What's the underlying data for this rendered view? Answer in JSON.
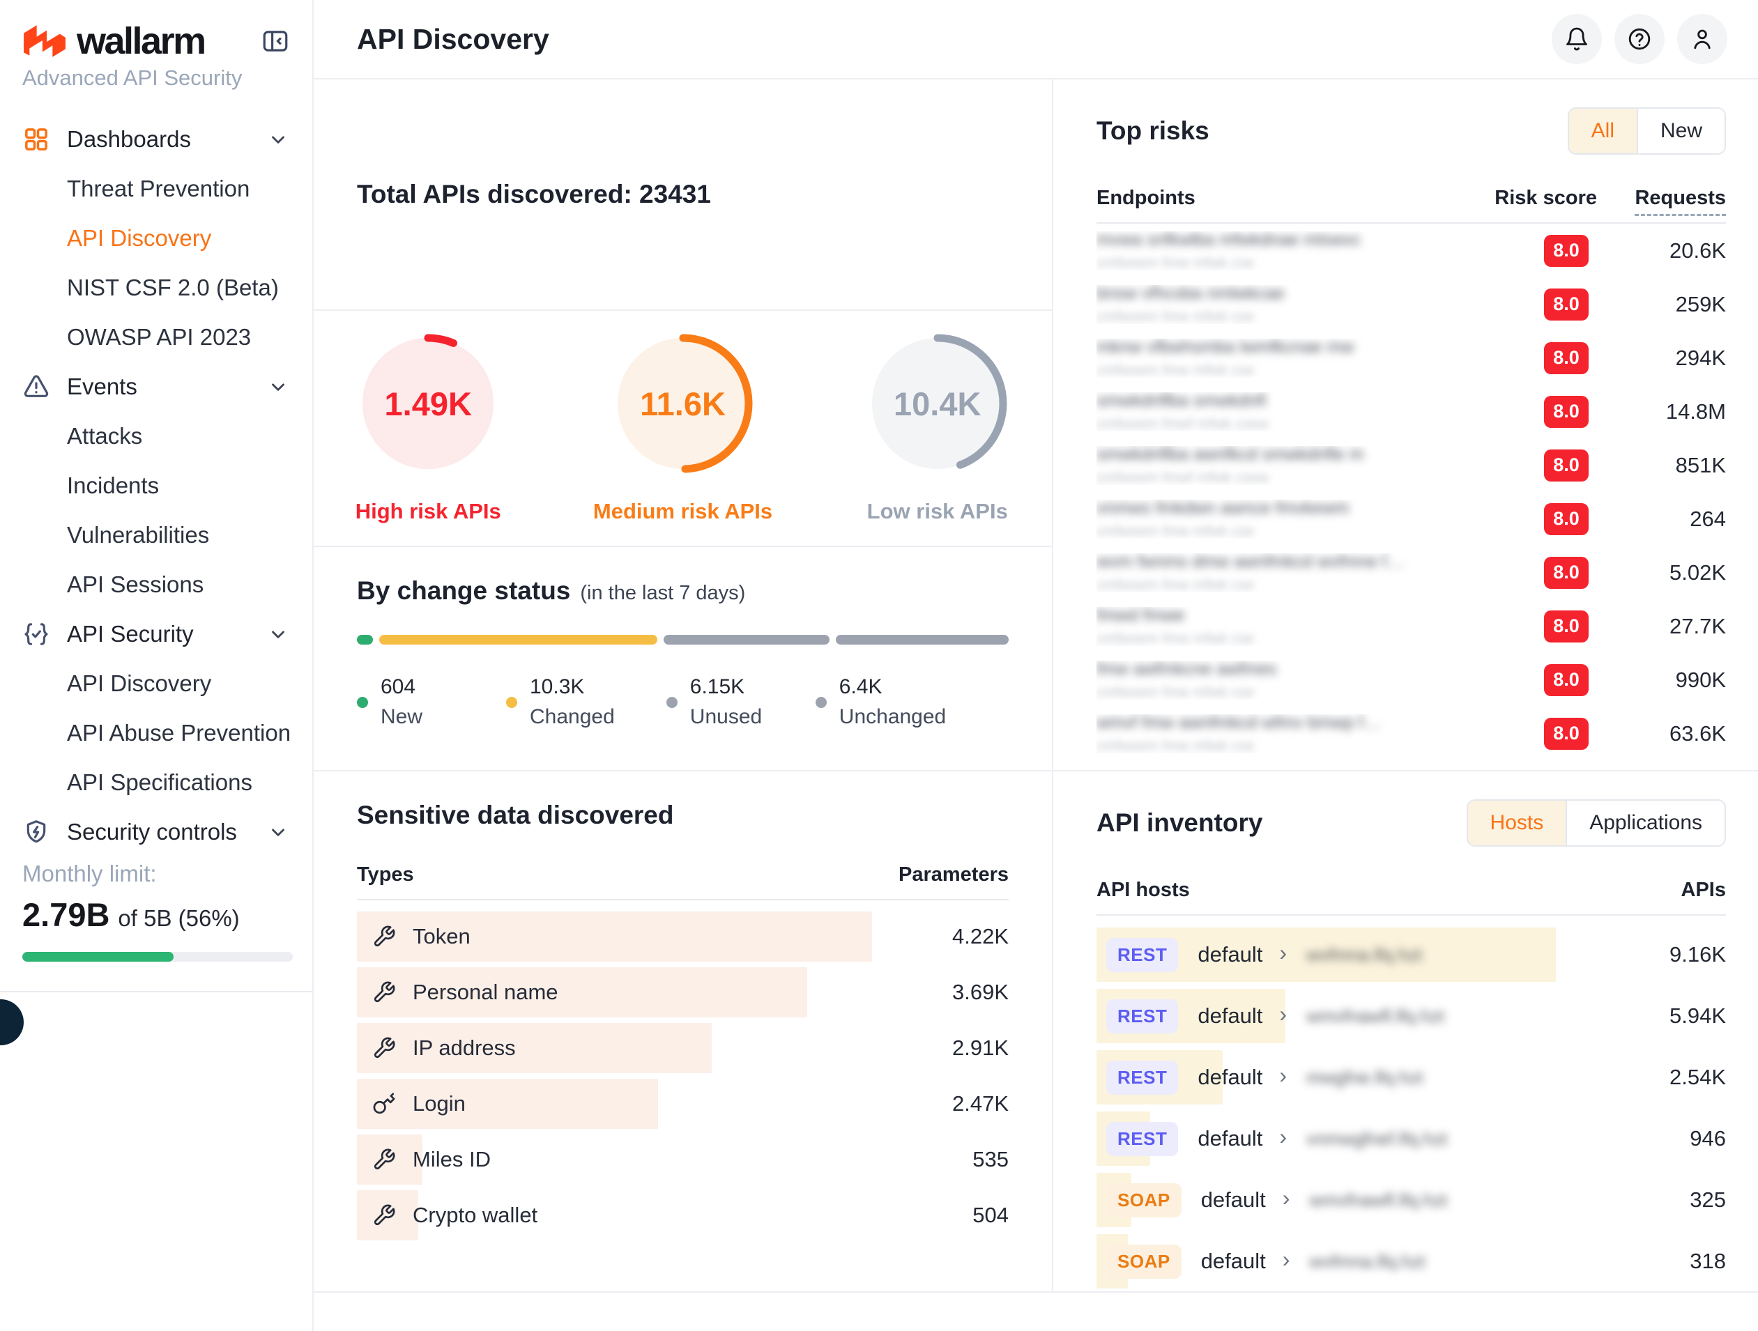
{
  "sidebar": {
    "brand": {
      "name": "wallarm",
      "tagline": "Advanced API Security"
    },
    "nav": [
      {
        "label": "Dashboards",
        "type": "section",
        "icon": "grid-icon"
      },
      {
        "label": "Threat Prevention",
        "type": "sub"
      },
      {
        "label": "API Discovery",
        "type": "sub",
        "active": true
      },
      {
        "label": "NIST CSF 2.0 (Beta)",
        "type": "sub"
      },
      {
        "label": "OWASP API 2023",
        "type": "sub"
      },
      {
        "label": "Events",
        "type": "section",
        "icon": "warning-icon"
      },
      {
        "label": "Attacks",
        "type": "sub"
      },
      {
        "label": "Incidents",
        "type": "sub"
      },
      {
        "label": "Vulnerabilities",
        "type": "sub"
      },
      {
        "label": "API Sessions",
        "type": "sub"
      },
      {
        "label": "API Security",
        "type": "section",
        "icon": "braces-check-icon"
      },
      {
        "label": "API Discovery",
        "type": "sub"
      },
      {
        "label": "API Abuse Prevention",
        "type": "sub"
      },
      {
        "label": "API Specifications",
        "type": "sub"
      },
      {
        "label": "Security controls",
        "type": "section",
        "icon": "shield-lightning-icon"
      }
    ],
    "monthly_limit": {
      "label": "Monthly limit:",
      "used": "2.79B",
      "suffix": "of 5B (56%)",
      "percent": 56,
      "bar_color": "#2cb573"
    }
  },
  "header": {
    "title": "API Discovery"
  },
  "totals": {
    "title": "Total APIs discovered: 23431",
    "total": 23431
  },
  "risk_circles": [
    {
      "value": "1.49K",
      "count": 1490,
      "label": "High risk APIs",
      "color": "#f5232e",
      "fill": "#fdeaea"
    },
    {
      "value": "11.6K",
      "count": 11600,
      "label": "Medium risk APIs",
      "color": "#f97c16",
      "fill": "#fdf2e7"
    },
    {
      "value": "10.4K",
      "count": 10400,
      "label": "Low risk APIs",
      "color": "#9aa3b2",
      "fill": "#f3f4f6"
    }
  ],
  "change_status": {
    "title": "By change status",
    "subtitle": "(in the last 7 days)",
    "segments": [
      {
        "value": 604,
        "display": "604",
        "label": "New",
        "color": "#2eac6f"
      },
      {
        "value": 10300,
        "display": "10.3K",
        "label": "Changed",
        "color": "#f6bd45"
      },
      {
        "value": 6150,
        "display": "6.15K",
        "label": "Unused",
        "color": "#9ca3af"
      },
      {
        "value": 6400,
        "display": "6.4K",
        "label": "Unchanged",
        "color": "#9ca3af"
      }
    ]
  },
  "sensitive": {
    "title": "Sensitive data discovered",
    "col_type": "Types",
    "col_param": "Parameters",
    "max_value": 4220,
    "max_width_pct": 79,
    "rows": [
      {
        "label": "Token",
        "icon": "wrench-icon",
        "value": 4220,
        "display": "4.22K"
      },
      {
        "label": "Personal name",
        "icon": "wrench-icon",
        "value": 3690,
        "display": "3.69K"
      },
      {
        "label": "IP address",
        "icon": "wrench-icon",
        "value": 2910,
        "display": "2.91K"
      },
      {
        "label": "Login",
        "icon": "key-icon",
        "value": 2470,
        "display": "2.47K"
      },
      {
        "label": "Miles ID",
        "icon": "wrench-icon",
        "value": 535,
        "display": "535"
      },
      {
        "label": "Crypto wallet",
        "icon": "wrench-icon",
        "value": 504,
        "display": "504"
      }
    ]
  },
  "top_risks": {
    "title": "Top risks",
    "filters": [
      "All",
      "New"
    ],
    "active_filter": "All",
    "col_endpoints": "Endpoints",
    "col_risk": "Risk score",
    "col_requests": "Requests",
    "score_color": "#f5232e",
    "rows": [
      {
        "endpoint_blur": "mvwa snfkwlba mfwkdnae mlswvc",
        "sub_blur": "cmfwsem fmw mfwk cse",
        "score": "8.0",
        "requests": "20.6K"
      },
      {
        "endpoint_blur": "bnsw vfhcsba nmlwkcae",
        "sub_blur": "cmfwsem fmw mfwk cse",
        "score": "8.0",
        "requests": "259K"
      },
      {
        "endpoint_blur": "mknw vfbwhsmba lwmfkcnae mw",
        "sub_blur": "cmfwsem fmw mfwk cse",
        "score": "8.0",
        "requests": "294K"
      },
      {
        "endpoint_blur": "smwkdnflba smwkdnfl",
        "sub_blur": "cmfwsem fmwf mfwk csew",
        "score": "8.0",
        "requests": "14.8M"
      },
      {
        "endpoint_blur": "smwkdnflba awnfkcd smwkdnfle m",
        "sub_blur": "cmfwsem fmwf mfwk csew",
        "score": "8.0",
        "requests": "851K"
      },
      {
        "endpoint_blur": "vnmws fmkdwn awnce fmvkewm",
        "sub_blur": "cmfwsem fmw mfwk cse",
        "score": "8.0",
        "requests": "264"
      },
      {
        "endpoint_blur": "wvm fwnms dmw awnfmkcd wvfmne f…",
        "sub_blur": "cmfwsem fmw mfwk cse",
        "score": "8.0",
        "requests": "5.02K"
      },
      {
        "endpoint_blur": "fmwd fmwe",
        "sub_blur": "cmfwsem fmw mfwk cse",
        "score": "8.0",
        "requests": "27.7K"
      },
      {
        "endpoint_blur": "fmw awfmkcne awfmes",
        "sub_blur": "cmfwsem fmw mfwk cse",
        "score": "8.0",
        "requests": "990K"
      },
      {
        "endpoint_blur": "wmvf fmw awnfmkcd wfmv bmwp f…",
        "sub_blur": "cmfwsem fmw mfwk cse",
        "score": "8.0",
        "requests": "63.6K"
      }
    ]
  },
  "api_inventory": {
    "title": "API inventory",
    "filters": [
      "Hosts",
      "Applications"
    ],
    "active_filter": "Hosts",
    "col_hosts": "API hosts",
    "col_apis": "APIs",
    "rows": [
      {
        "protocol": "REST",
        "group": "default",
        "host_blur": "wvfmna.lfq.hzt",
        "apis": "9.16K",
        "bar_pct": 73
      },
      {
        "protocol": "REST",
        "group": "default",
        "host_blur": "wmvfnawfl.lfq.hzt",
        "apis": "5.94K",
        "bar_pct": 30
      },
      {
        "protocol": "REST",
        "group": "default",
        "host_blur": "mwgfne.lfq.hzt",
        "apis": "2.54K",
        "bar_pct": 20
      },
      {
        "protocol": "REST",
        "group": "default",
        "host_blur": "vnmwgfnef.lfq.hzt",
        "apis": "946",
        "bar_pct": 8.5
      },
      {
        "protocol": "SOAP",
        "group": "default",
        "host_blur": "wmvfnawfl.lfq.hzt",
        "apis": "325",
        "bar_pct": 5.5
      },
      {
        "protocol": "SOAP",
        "group": "default",
        "host_blur": "wvfmna.lfq.hzt",
        "apis": "318",
        "bar_pct": 5
      }
    ]
  }
}
